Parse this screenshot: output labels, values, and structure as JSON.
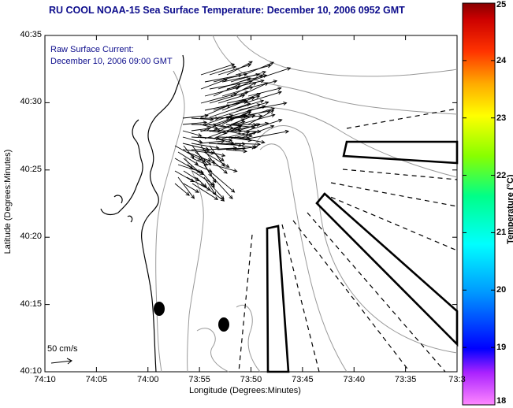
{
  "title": "RU COOL  NOAA-15  Sea Surface Temperature:  December 10, 2006 0952 GMT",
  "current_label_line1": "Raw Surface Current:",
  "current_label_line2": "December 10, 2006 09:00 GMT",
  "scale_label": "50 cm/s",
  "x_axis": {
    "label": "Longitude (Degrees:Minutes)",
    "ticks": [
      "74:10",
      "74:05",
      "74:00",
      "73:55",
      "73:50",
      "73:45",
      "73:40",
      "73:35",
      "73:3"
    ]
  },
  "y_axis": {
    "label": "Latitude (Degrees:Minutes)",
    "ticks": [
      "40:35",
      "40:30",
      "40:25",
      "40:20",
      "40:15",
      "40:10"
    ]
  },
  "colorbar": {
    "label": "Temperature (°C)",
    "ticks": [
      "25",
      "24",
      "23",
      "22",
      "21",
      "20",
      "19",
      "18"
    ],
    "range": [
      18,
      25
    ],
    "colors": [
      "#ff44ff",
      "#0000ff",
      "#00ccff",
      "#00ff66",
      "#ccff00",
      "#ff8800",
      "#ff0000",
      "#880000"
    ]
  }
}
